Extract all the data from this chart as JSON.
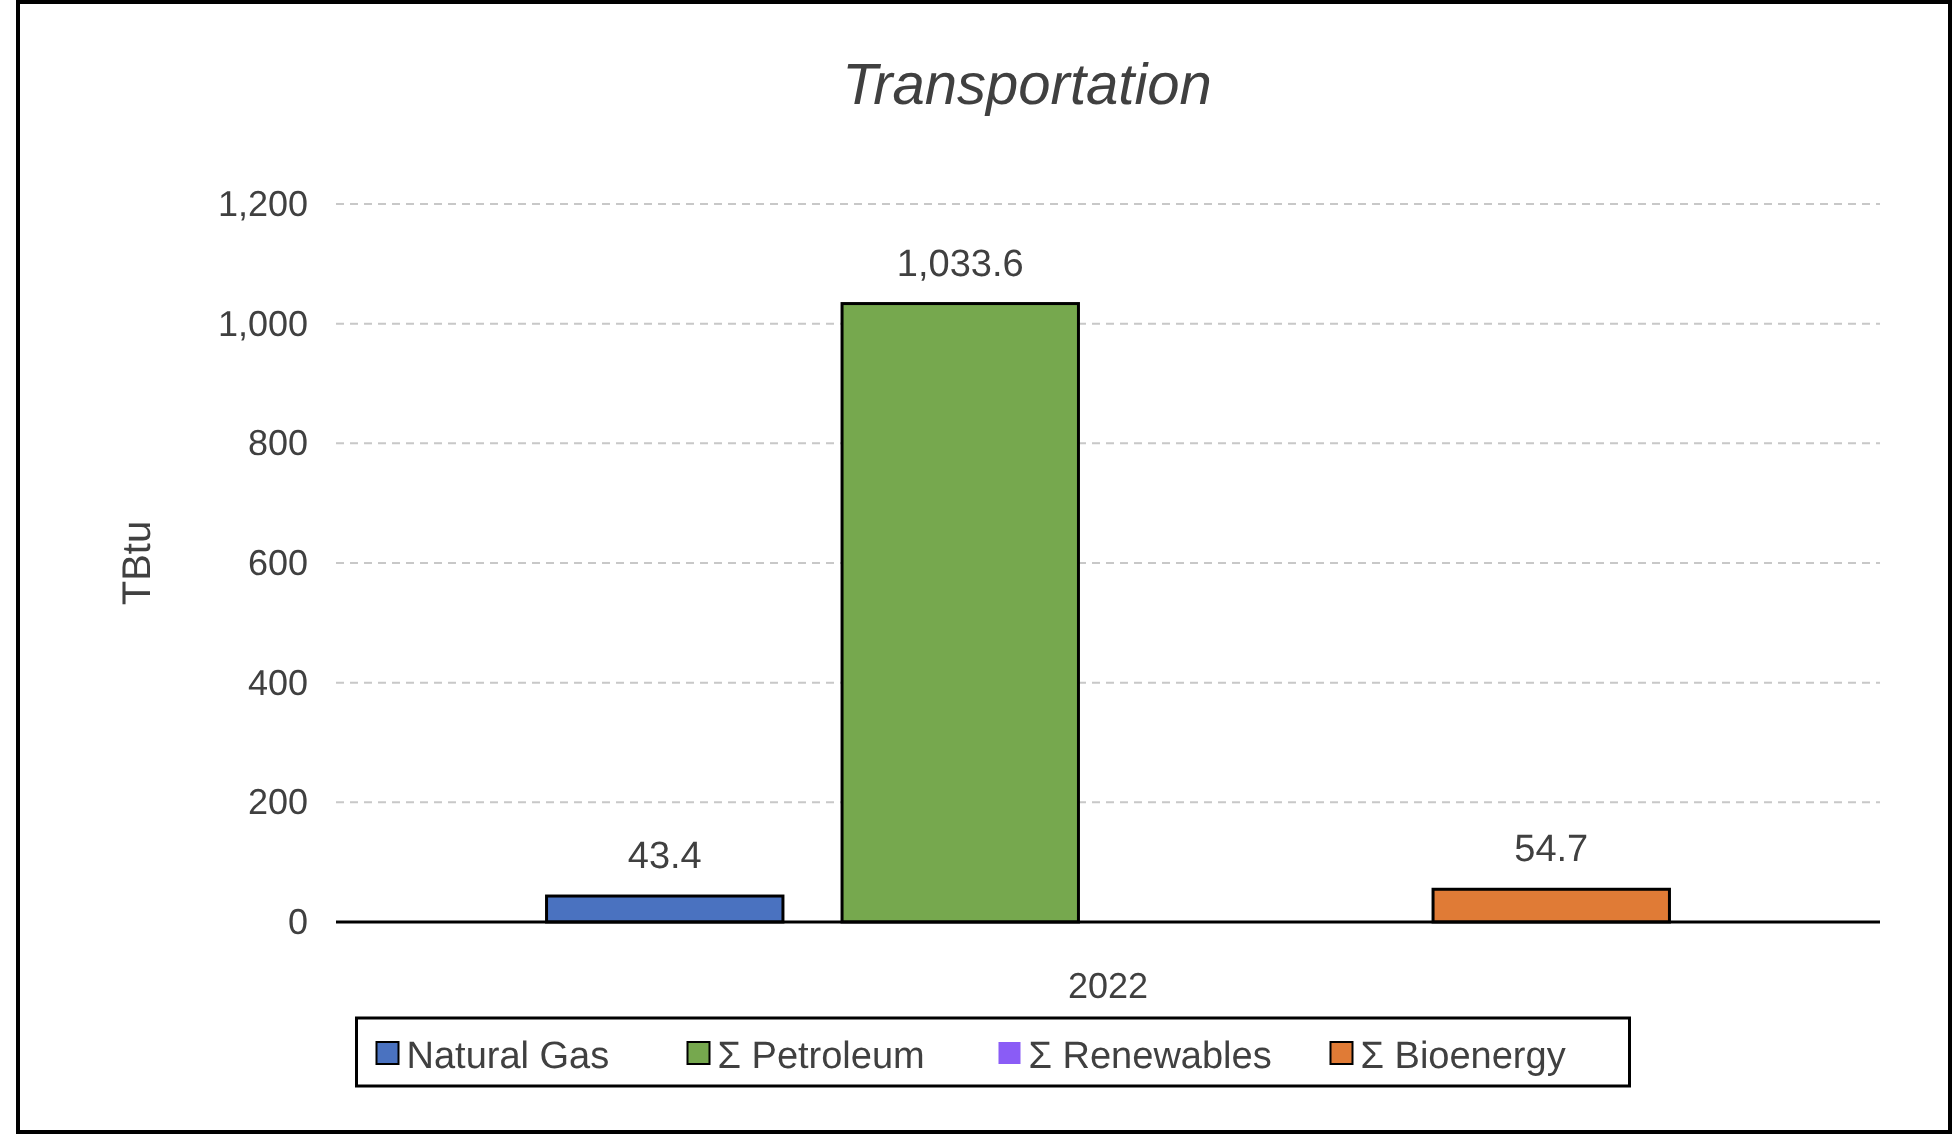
{
  "chart_data": {
    "type": "bar",
    "title": "Transportation",
    "ylabel": "TBtu",
    "categories": [
      "2022"
    ],
    "series": [
      {
        "name": "Natural Gas",
        "color": "#4a72c0",
        "values": [
          43.4
        ],
        "value_labels": [
          "43.4"
        ]
      },
      {
        "name": "Σ Petroleum",
        "color": "#76a84e",
        "values": [
          1033.6
        ],
        "value_labels": [
          "1,033.6"
        ]
      },
      {
        "name": "Σ Renewables",
        "color": "#8a5cf6",
        "values": [
          null
        ],
        "value_labels": [
          null
        ]
      },
      {
        "name": "Σ Bioenergy",
        "color": "#e07b36",
        "values": [
          54.7
        ],
        "value_labels": [
          "54.7"
        ]
      }
    ],
    "ylim": [
      0,
      1200
    ],
    "yticks": [
      0,
      200,
      400,
      600,
      800,
      {
        "value": 1000,
        "label": "1,000"
      },
      {
        "value": 1200,
        "label": "1,200"
      }
    ],
    "grid": "y",
    "legend": "bottom"
  }
}
